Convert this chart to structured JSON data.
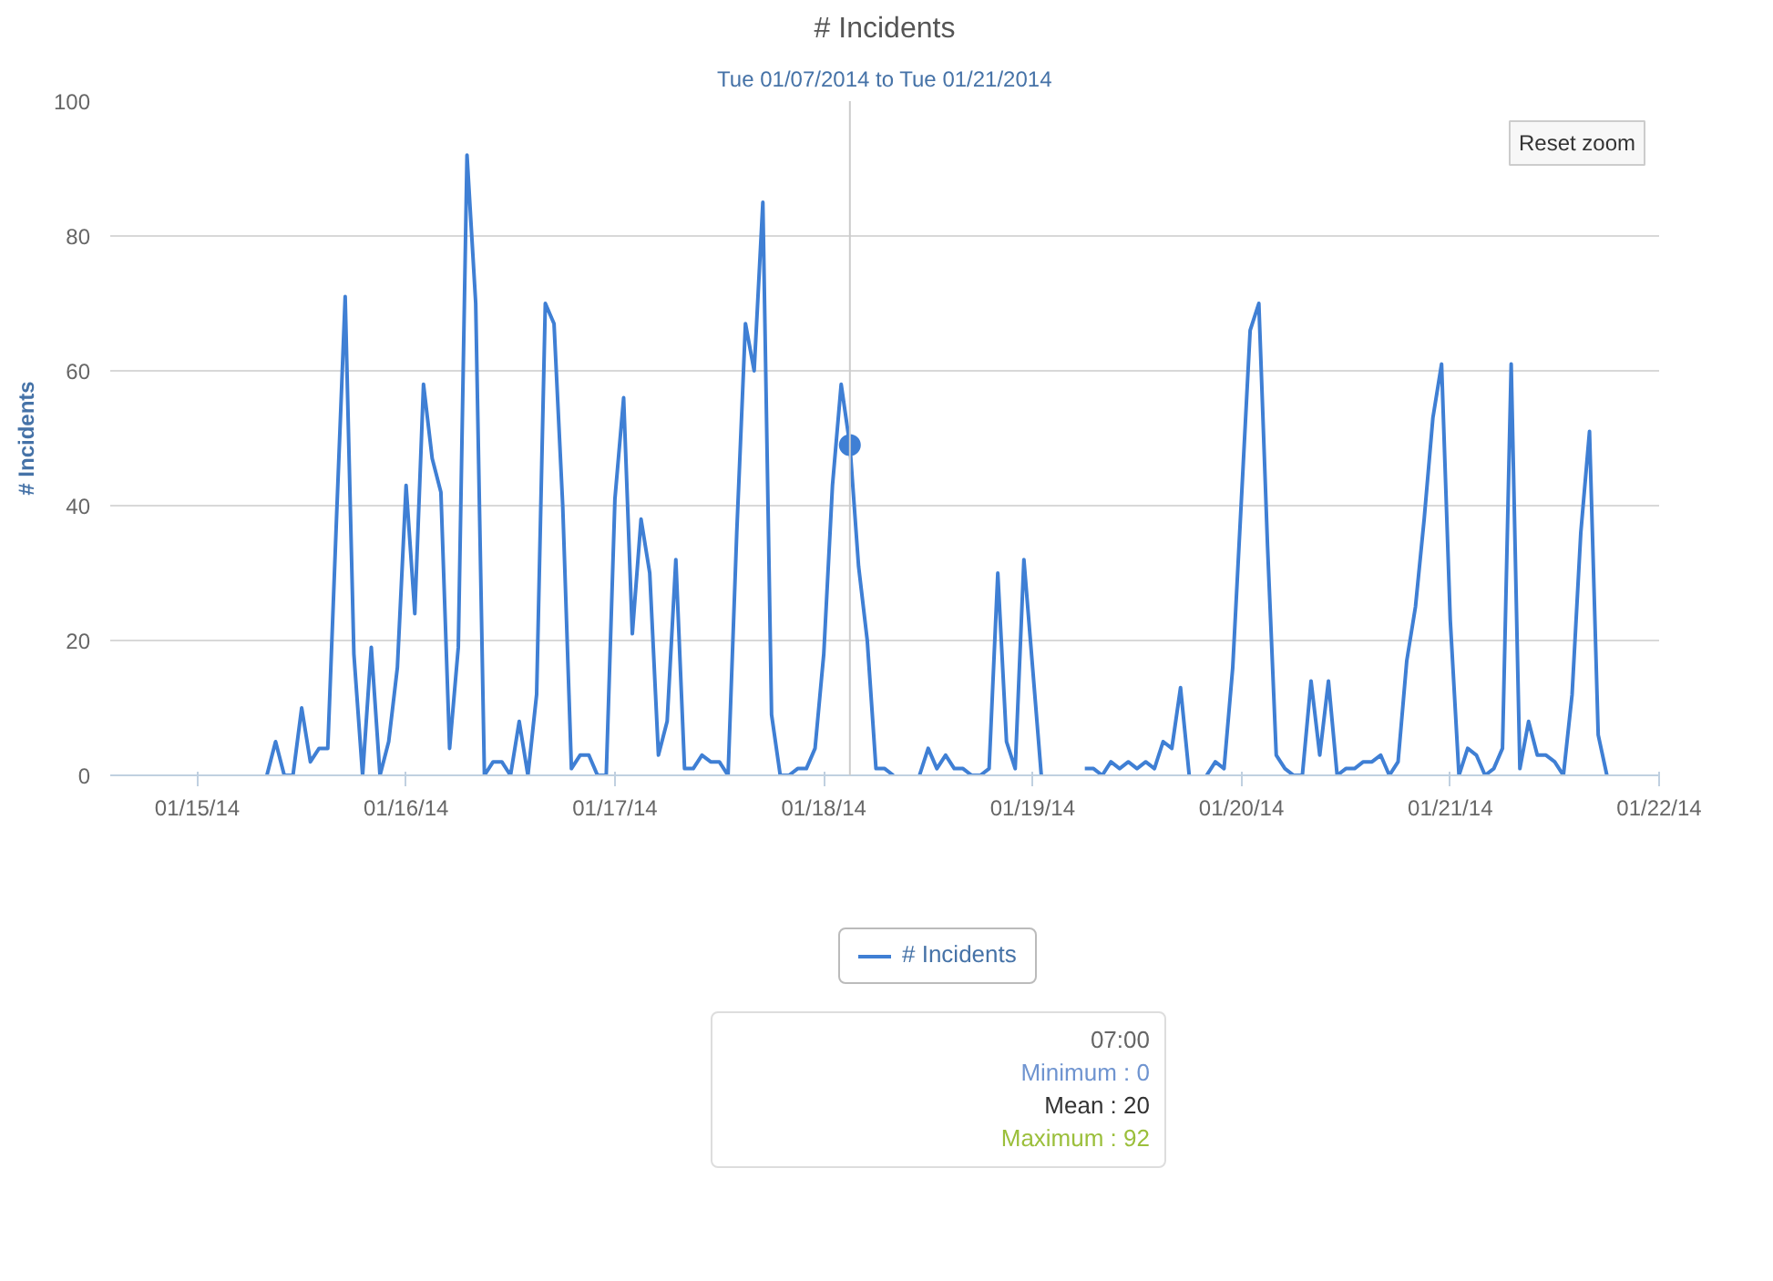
{
  "chart_data": {
    "type": "line",
    "title": "# Incidents",
    "subtitle": "Tue 01/07/2014 to Tue 01/21/2014",
    "ylabel": "# Incidents",
    "xlim": [
      "2014-01-14T14:00",
      "2014-01-22T00:00"
    ],
    "xticks": [
      {
        "value": "2014-01-15",
        "label": "01/15/14"
      },
      {
        "value": "2014-01-16",
        "label": "01/16/14"
      },
      {
        "value": "2014-01-17",
        "label": "01/17/14"
      },
      {
        "value": "2014-01-18",
        "label": "01/18/14"
      },
      {
        "value": "2014-01-19",
        "label": "01/19/14"
      },
      {
        "value": "2014-01-20",
        "label": "01/20/14"
      },
      {
        "value": "2014-01-21",
        "label": "01/21/14"
      },
      {
        "value": "2014-01-22",
        "label": "01/22/14"
      }
    ],
    "ylim": [
      0,
      100
    ],
    "yticks": [
      0,
      20,
      40,
      60,
      80,
      100
    ],
    "grid": "y",
    "legend": "bottom",
    "marker": "none",
    "line_style": "solid",
    "series": [
      {
        "name": "# Incidents",
        "color": "#3f7fd4",
        "x": [
          "2014-01-15T08:00",
          "2014-01-15T09:00",
          "2014-01-15T10:00",
          "2014-01-15T11:00",
          "2014-01-15T12:00",
          "2014-01-15T13:00",
          "2014-01-15T14:00",
          "2014-01-15T15:00",
          "2014-01-15T16:00",
          "2014-01-15T17:00",
          "2014-01-15T18:00",
          "2014-01-15T19:00",
          "2014-01-15T20:00",
          "2014-01-15T21:00",
          "2014-01-15T22:00",
          "2014-01-15T23:00",
          "2014-01-16T00:00",
          "2014-01-16T01:00",
          "2014-01-16T02:00",
          "2014-01-16T03:00",
          "2014-01-16T04:00",
          "2014-01-16T05:00",
          "2014-01-16T06:00",
          "2014-01-16T07:00",
          "2014-01-16T08:00",
          "2014-01-16T09:00",
          "2014-01-16T10:00",
          "2014-01-16T11:00",
          "2014-01-16T12:00",
          "2014-01-16T13:00",
          "2014-01-16T14:00",
          "2014-01-16T15:00",
          "2014-01-16T16:00",
          "2014-01-16T17:00",
          "2014-01-16T18:00",
          "2014-01-16T19:00",
          "2014-01-16T20:00",
          "2014-01-16T21:00",
          "2014-01-16T22:00",
          "2014-01-16T23:00",
          "2014-01-17T00:00",
          "2014-01-17T01:00",
          "2014-01-17T02:00",
          "2014-01-17T03:00",
          "2014-01-17T04:00",
          "2014-01-17T05:00",
          "2014-01-17T06:00",
          "2014-01-17T07:00",
          "2014-01-17T08:00",
          "2014-01-17T09:00",
          "2014-01-17T10:00",
          "2014-01-17T11:00",
          "2014-01-17T12:00",
          "2014-01-17T13:00",
          "2014-01-17T14:00",
          "2014-01-17T15:00",
          "2014-01-17T16:00",
          "2014-01-17T17:00",
          "2014-01-17T18:00",
          "2014-01-17T19:00",
          "2014-01-17T20:00",
          "2014-01-17T21:00",
          "2014-01-17T22:00",
          "2014-01-17T23:00",
          "2014-01-18T00:00",
          "2014-01-18T01:00",
          "2014-01-18T02:00",
          "2014-01-18T03:00",
          "2014-01-18T04:00",
          "2014-01-18T05:00",
          "2014-01-18T06:00",
          "2014-01-18T07:00",
          "2014-01-18T08:00",
          "2014-01-18T09:00",
          "2014-01-18T10:00",
          "2014-01-18T11:00",
          "2014-01-18T12:00",
          "2014-01-18T13:00",
          "2014-01-18T14:00",
          "2014-01-18T15:00",
          "2014-01-18T16:00",
          "2014-01-18T17:00",
          "2014-01-18T18:00",
          "2014-01-18T19:00",
          "2014-01-18T20:00",
          "2014-01-18T21:00",
          "2014-01-18T22:00",
          "2014-01-18T23:00",
          "2014-01-19T00:00",
          "2014-01-19T01:00",
          "2014-01-19T02:00",
          "2014-01-19T03:00",
          "2014-01-19T04:00",
          "2014-01-19T05:00",
          "2014-01-19T06:00",
          "2014-01-19T07:00",
          "2014-01-19T08:00",
          "2014-01-19T09:00",
          "2014-01-19T10:00",
          "2014-01-19T11:00",
          "2014-01-19T12:00",
          "2014-01-19T13:00",
          "2014-01-19T14:00",
          "2014-01-19T15:00",
          "2014-01-19T16:00",
          "2014-01-19T17:00",
          "2014-01-19T18:00",
          "2014-01-19T19:00",
          "2014-01-19T20:00",
          "2014-01-19T21:00",
          "2014-01-19T22:00",
          "2014-01-19T23:00",
          "2014-01-20T00:00",
          "2014-01-20T01:00",
          "2014-01-20T02:00",
          "2014-01-20T03:00",
          "2014-01-20T04:00",
          "2014-01-20T05:00",
          "2014-01-20T06:00",
          "2014-01-20T07:00",
          "2014-01-20T08:00",
          "2014-01-20T09:00",
          "2014-01-20T10:00",
          "2014-01-20T11:00",
          "2014-01-20T12:00",
          "2014-01-20T13:00",
          "2014-01-20T14:00",
          "2014-01-20T15:00",
          "2014-01-20T16:00",
          "2014-01-20T17:00",
          "2014-01-20T18:00",
          "2014-01-20T19:00",
          "2014-01-20T20:00",
          "2014-01-20T21:00",
          "2014-01-20T22:00",
          "2014-01-20T23:00",
          "2014-01-21T00:00",
          "2014-01-21T01:00",
          "2014-01-21T02:00",
          "2014-01-21T03:00",
          "2014-01-21T04:00",
          "2014-01-21T05:00",
          "2014-01-21T06:00",
          "2014-01-21T07:00",
          "2014-01-21T08:00",
          "2014-01-21T09:00",
          "2014-01-21T10:00",
          "2014-01-21T11:00",
          "2014-01-21T12:00",
          "2014-01-21T13:00",
          "2014-01-21T14:00",
          "2014-01-21T15:00",
          "2014-01-21T16:00",
          "2014-01-21T17:00",
          "2014-01-21T18:00"
        ],
        "values": [
          0,
          5,
          0,
          0,
          10,
          2,
          4,
          4,
          38,
          71,
          18,
          0,
          19,
          0,
          5,
          16,
          43,
          24,
          58,
          47,
          42,
          4,
          19,
          92,
          70,
          0,
          2,
          2,
          0,
          8,
          0,
          12,
          70,
          67,
          40,
          1,
          3,
          3,
          0,
          0,
          41,
          56,
          21,
          38,
          30,
          3,
          8,
          32,
          1,
          1,
          3,
          2,
          2,
          0,
          36,
          67,
          60,
          85,
          9,
          0,
          0,
          1,
          1,
          4,
          18,
          43,
          58,
          49,
          31,
          20,
          1,
          1,
          0,
          null,
          null,
          0,
          4,
          1,
          3,
          1,
          1,
          0,
          0,
          1,
          30,
          5,
          1,
          32,
          16,
          0,
          null,
          null,
          null,
          null,
          1,
          1,
          0,
          2,
          1,
          2,
          1,
          2,
          1,
          5,
          4,
          13,
          0,
          null,
          0,
          2,
          1,
          16,
          41,
          66,
          70,
          34,
          3,
          1,
          0,
          0,
          14,
          3,
          14,
          0,
          1,
          1,
          2,
          2,
          3,
          0,
          2,
          17,
          25,
          38,
          53,
          61,
          23,
          0,
          4,
          3,
          0,
          1,
          4,
          61,
          1,
          8,
          3,
          3,
          2,
          0,
          12,
          36,
          51,
          6,
          0
        ]
      },
      {
        "type": "scatter",
        "marker": "circle",
        "color": "#3f7fd4",
        "x": [
          "2014-01-18T03:00"
        ],
        "values": [
          49
        ]
      }
    ],
    "ref_lines": [
      {
        "axis": "x",
        "value": "2014-01-18T03:00",
        "color": "#cccccc"
      }
    ],
    "annotations": [
      "Reset zoom",
      "07:00",
      "Minimum : 0",
      "Mean : 20",
      "Maximum : 92"
    ]
  }
}
